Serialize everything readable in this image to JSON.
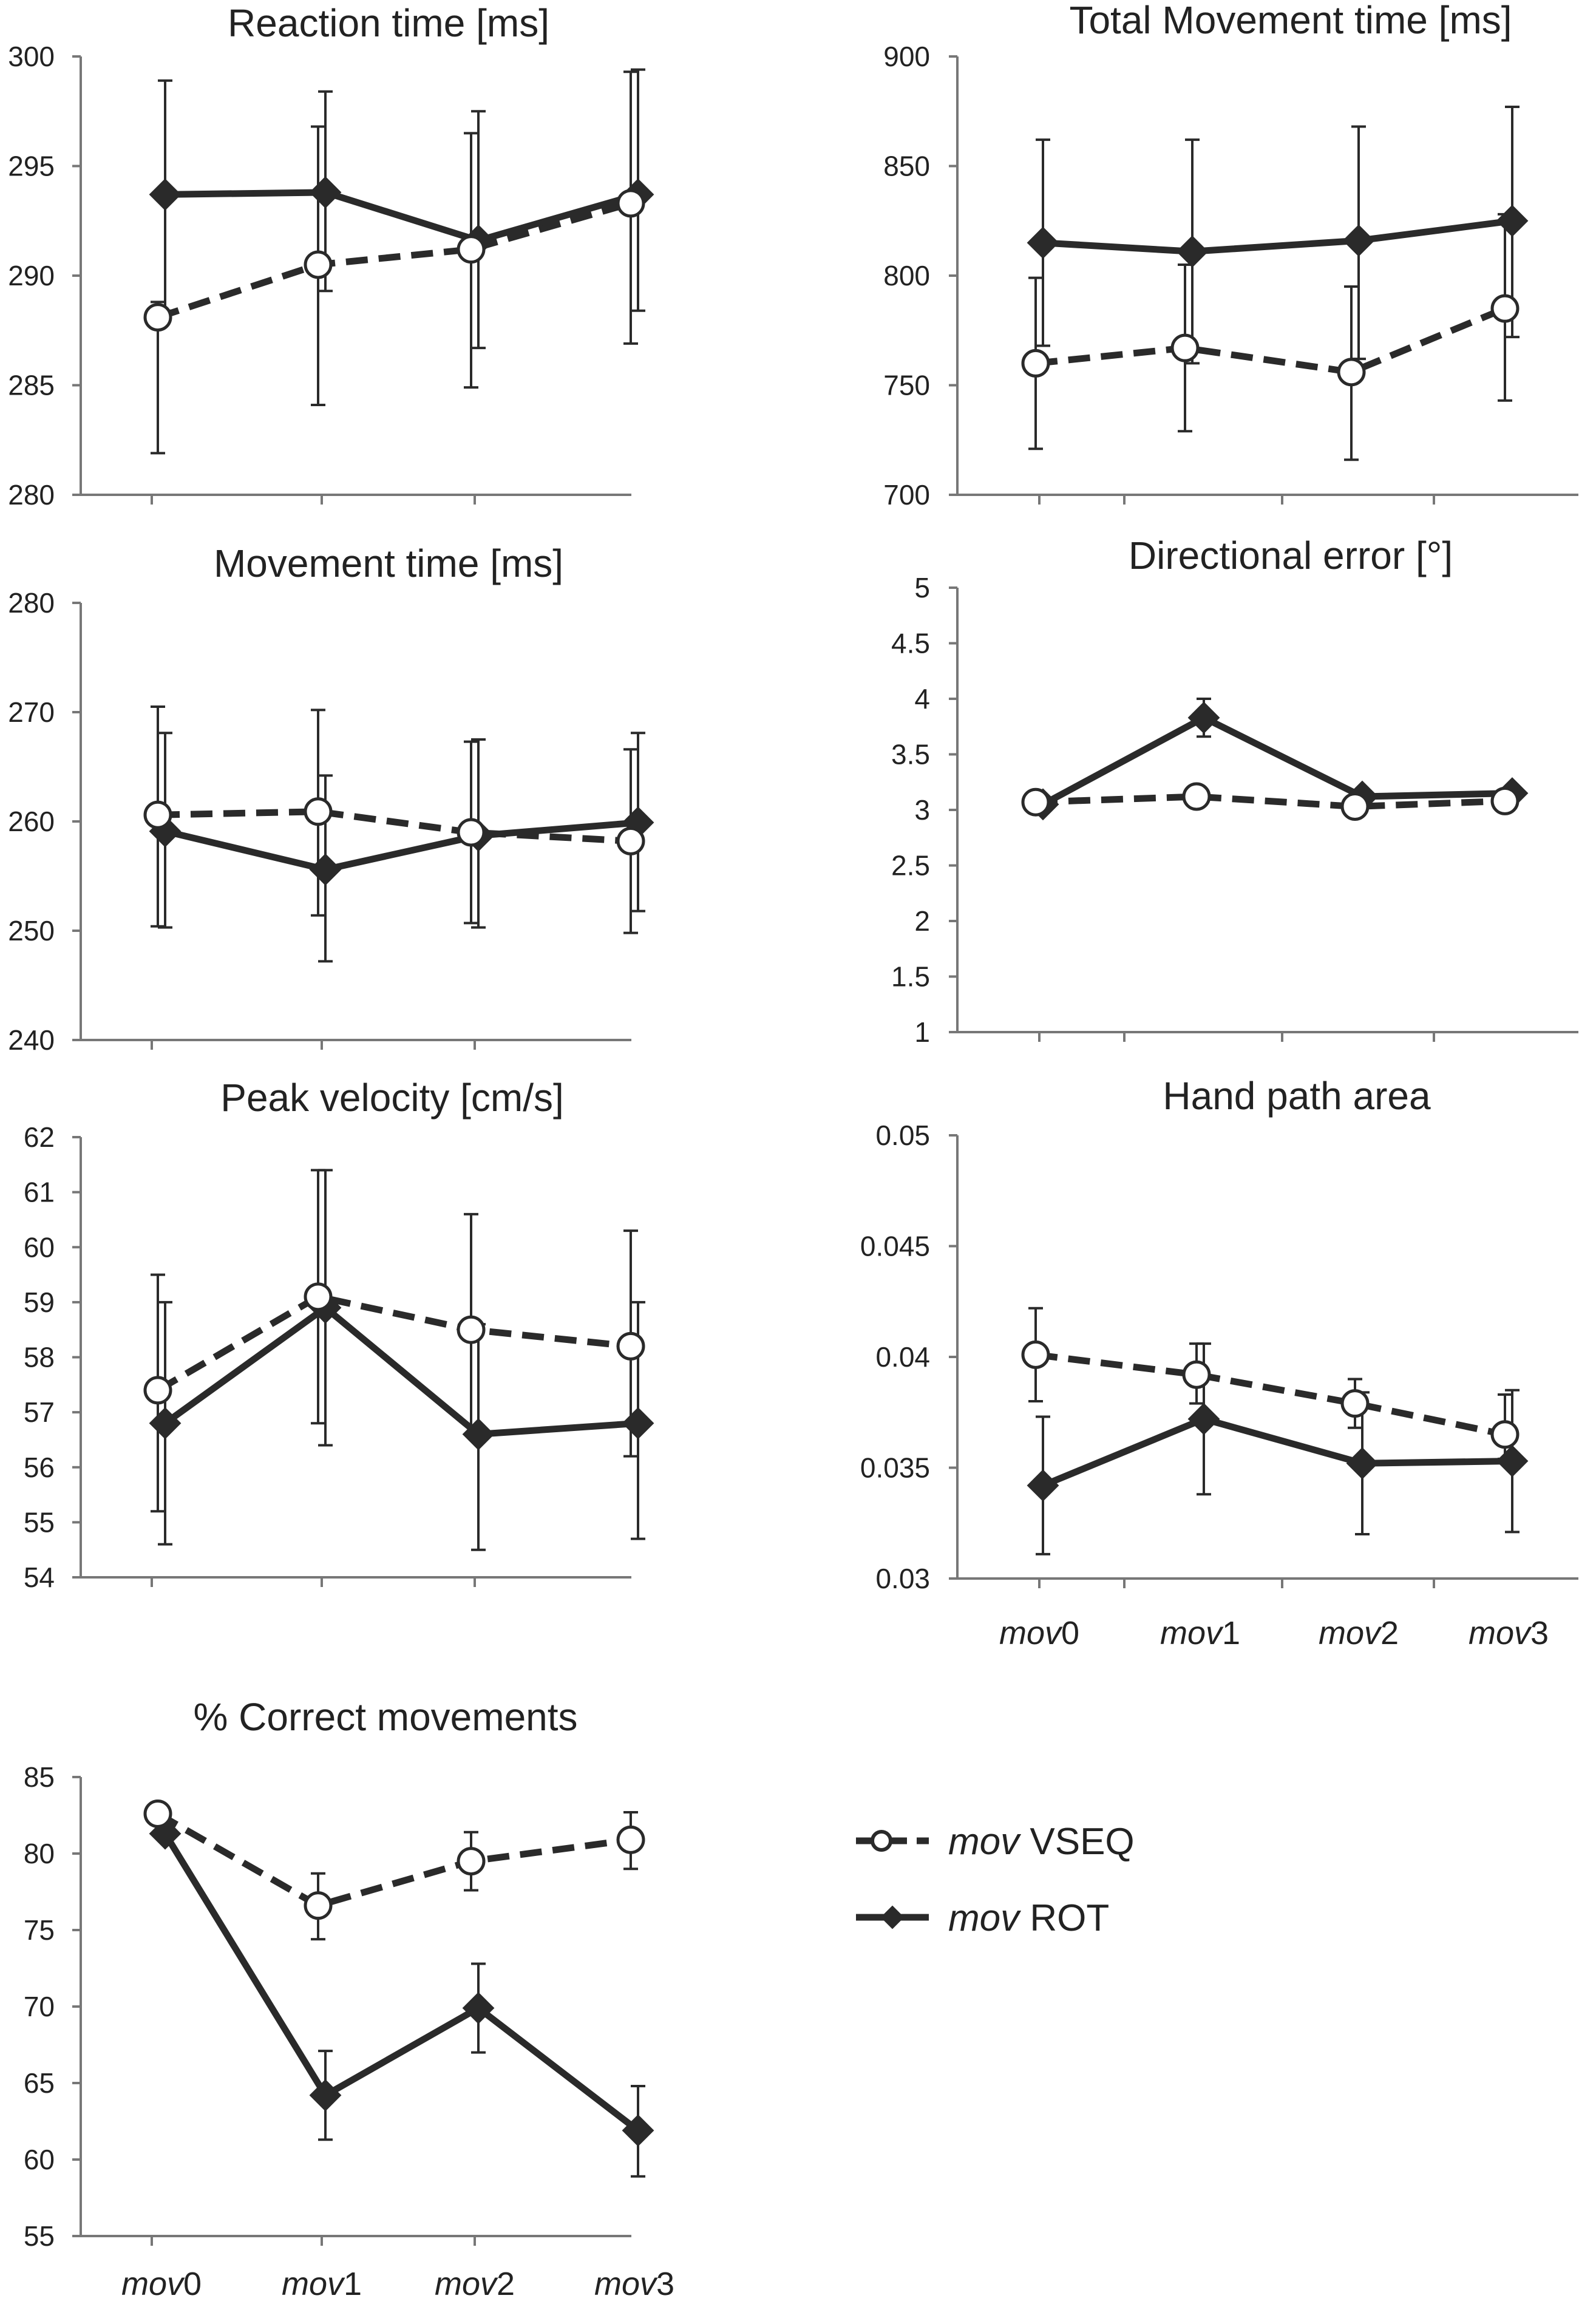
{
  "series_names": [
    "mov VSEQ",
    "mov ROT"
  ],
  "legend": {
    "items": [
      {
        "italic": "mov",
        "rest": " VSEQ",
        "style": "dashed-open-circle"
      },
      {
        "italic": "mov",
        "rest": " ROT",
        "style": "solid-filled-diamond"
      }
    ]
  },
  "colors": {
    "line": "#2a2a2a",
    "axis": "#777777",
    "marker_fill_open": "#ffffff"
  },
  "chart_data": [
    {
      "type": "line",
      "title": "Reaction time [ms]",
      "ylim": [
        280,
        300
      ],
      "yticks": [
        "280",
        "285",
        "290",
        "295",
        "300"
      ],
      "categories": [
        "mov0",
        "mov1",
        "mov2",
        "mov3"
      ],
      "show_categories": false,
      "series": [
        {
          "name": "mov VSEQ",
          "values": [
            288.1,
            290.5,
            291.2,
            293.3
          ],
          "err_low": [
            281.9,
            284.1,
            284.9,
            286.9
          ],
          "err_high": [
            288.8,
            296.8,
            296.5,
            299.3
          ]
        },
        {
          "name": "mov ROT",
          "values": [
            293.7,
            293.8,
            291.6,
            293.7
          ],
          "err_low": [
            288.4,
            289.3,
            286.7,
            288.4
          ],
          "err_high": [
            298.9,
            298.4,
            297.5,
            299.4
          ]
        }
      ]
    },
    {
      "type": "line",
      "title": "Total Movement time [ms]",
      "ylim": [
        700,
        900
      ],
      "yticks": [
        "700",
        "750",
        "800",
        "850",
        "900"
      ],
      "categories": [
        "mov0",
        "mov1",
        "mov2",
        "mov3"
      ],
      "show_categories": false,
      "series": [
        {
          "name": "mov VSEQ",
          "values": [
            760,
            767,
            756,
            785
          ],
          "err_low": [
            721,
            729,
            716,
            743
          ],
          "err_high": [
            799,
            805,
            795,
            828
          ]
        },
        {
          "name": "mov ROT",
          "values": [
            815,
            811,
            816,
            825
          ],
          "err_low": [
            768,
            760,
            762,
            772
          ],
          "err_high": [
            862,
            862,
            868,
            877
          ]
        }
      ]
    },
    {
      "type": "line",
      "title": "Movement time [ms]",
      "ylim": [
        240,
        280
      ],
      "yticks": [
        "240",
        "250",
        "260",
        "270",
        "280"
      ],
      "categories": [
        "mov0",
        "mov1",
        "mov2",
        "mov3"
      ],
      "show_categories": false,
      "series": [
        {
          "name": "mov VSEQ",
          "values": [
            260.6,
            260.9,
            259.0,
            258.2
          ],
          "err_low": [
            250.4,
            251.4,
            250.7,
            249.8
          ],
          "err_high": [
            270.5,
            270.2,
            267.3,
            266.6
          ]
        },
        {
          "name": "mov ROT",
          "values": [
            259.1,
            255.6,
            258.7,
            259.9
          ],
          "err_low": [
            250.3,
            247.2,
            250.3,
            251.8
          ],
          "err_high": [
            268.1,
            264.2,
            267.5,
            268.1
          ]
        }
      ]
    },
    {
      "type": "line",
      "title": "Directional error [°]",
      "ylim": [
        1,
        5
      ],
      "yticks": [
        "1",
        "1.5",
        "2",
        "2.5",
        "3",
        "3.5",
        "4",
        "4.5",
        "5"
      ],
      "categories": [
        "mov0",
        "mov1",
        "mov2",
        "mov3"
      ],
      "show_categories": false,
      "series": [
        {
          "name": "mov VSEQ",
          "values": [
            3.07,
            3.12,
            3.03,
            3.08
          ],
          "err_low": [
            3.0,
            3.07,
            2.98,
            3.03
          ],
          "err_high": [
            3.14,
            3.17,
            3.08,
            3.13
          ]
        },
        {
          "name": "mov ROT",
          "values": [
            3.05,
            3.83,
            3.12,
            3.15
          ],
          "err_low": [
            3.0,
            3.66,
            3.07,
            3.1
          ],
          "err_high": [
            3.1,
            4.0,
            3.17,
            3.2
          ]
        }
      ]
    },
    {
      "type": "line",
      "title": "Peak velocity [cm/s]",
      "ylim": [
        54,
        62
      ],
      "yticks": [
        "54",
        "55",
        "56",
        "57",
        "58",
        "59",
        "60",
        "61",
        "62"
      ],
      "categories": [
        "mov0",
        "mov1",
        "mov2",
        "mov3"
      ],
      "show_categories": false,
      "series": [
        {
          "name": "mov VSEQ",
          "values": [
            57.4,
            59.1,
            58.5,
            58.2
          ],
          "err_low": [
            55.2,
            56.8,
            56.6,
            56.2
          ],
          "err_high": [
            59.5,
            61.4,
            60.6,
            60.3
          ]
        },
        {
          "name": "mov ROT",
          "values": [
            56.8,
            58.9,
            56.6,
            56.8
          ],
          "err_low": [
            54.6,
            56.4,
            54.5,
            54.7
          ],
          "err_high": [
            59.0,
            61.4,
            58.6,
            59.0
          ]
        }
      ]
    },
    {
      "type": "line",
      "title": "Hand path area",
      "ylim": [
        0.03,
        0.05
      ],
      "yticks": [
        "0.03",
        "0.035",
        "0.04",
        "0.045",
        "0.05"
      ],
      "categories": [
        "mov0",
        "mov1",
        "mov2",
        "mov3"
      ],
      "show_categories": true,
      "series": [
        {
          "name": "mov VSEQ",
          "values": [
            0.0401,
            0.0392,
            0.0379,
            0.0365
          ],
          "err_low": [
            0.038,
            0.0379,
            0.0368,
            0.0354
          ],
          "err_high": [
            0.0422,
            0.0406,
            0.039,
            0.0383
          ]
        },
        {
          "name": "mov ROT",
          "values": [
            0.0342,
            0.0372,
            0.0352,
            0.0353
          ],
          "err_low": [
            0.0311,
            0.0338,
            0.032,
            0.0321
          ],
          "err_high": [
            0.0373,
            0.0406,
            0.0384,
            0.0385
          ]
        }
      ]
    },
    {
      "type": "line",
      "title": "% Correct movements",
      "ylim": [
        55,
        85
      ],
      "yticks": [
        "55",
        "60",
        "65",
        "70",
        "75",
        "80",
        "85"
      ],
      "categories": [
        "mov0",
        "mov1",
        "mov2",
        "mov3"
      ],
      "show_categories": true,
      "series": [
        {
          "name": "mov VSEQ",
          "values": [
            82.6,
            76.6,
            79.5,
            80.9
          ],
          "err_low": [
            82.6,
            74.4,
            77.6,
            79.0
          ],
          "err_high": [
            82.6,
            78.7,
            81.4,
            82.7
          ]
        },
        {
          "name": "mov ROT",
          "values": [
            81.3,
            64.2,
            69.9,
            61.9
          ],
          "err_low": [
            81.3,
            61.3,
            67.0,
            58.9
          ],
          "err_high": [
            81.3,
            67.1,
            72.8,
            64.8
          ]
        }
      ]
    }
  ]
}
